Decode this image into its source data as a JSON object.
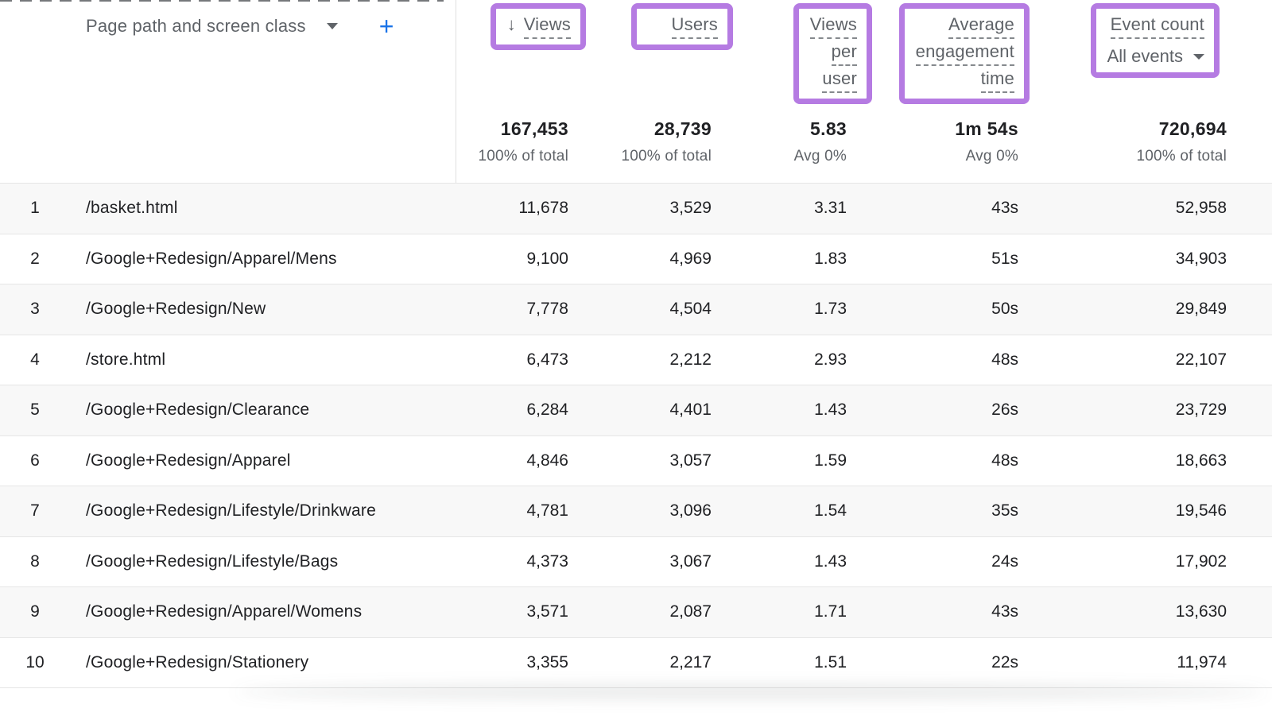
{
  "header": {
    "dimension_label": "Page path and screen class",
    "add_button_label": "+",
    "columns": [
      {
        "id": "views",
        "sort_icon": "↓",
        "label_lines": [
          "Views"
        ],
        "total": "167,453",
        "total_sub": "100% of total"
      },
      {
        "id": "users",
        "label_lines": [
          "Users"
        ],
        "total": "28,739",
        "total_sub": "100% of total"
      },
      {
        "id": "views_per_user",
        "label_lines": [
          "Views",
          "per",
          "user"
        ],
        "total": "5.83",
        "total_sub": "Avg 0%"
      },
      {
        "id": "average_engagement_time",
        "label_lines": [
          "Average",
          "engagement",
          "time"
        ],
        "total": "1m 54s",
        "total_sub": "Avg 0%"
      },
      {
        "id": "event_count",
        "label_lines": [
          "Event count"
        ],
        "event_selector": "All events",
        "total": "720,694",
        "total_sub": "100% of total"
      }
    ]
  },
  "rows": [
    {
      "index": "1",
      "path": "/basket.html",
      "views": "11,678",
      "users": "3,529",
      "views_per_user": "3.31",
      "avg_engagement_time": "43s",
      "event_count": "52,958"
    },
    {
      "index": "2",
      "path": "/Google+Redesign/Apparel/Mens",
      "views": "9,100",
      "users": "4,969",
      "views_per_user": "1.83",
      "avg_engagement_time": "51s",
      "event_count": "34,903"
    },
    {
      "index": "3",
      "path": "/Google+Redesign/New",
      "views": "7,778",
      "users": "4,504",
      "views_per_user": "1.73",
      "avg_engagement_time": "50s",
      "event_count": "29,849"
    },
    {
      "index": "4",
      "path": "/store.html",
      "views": "6,473",
      "users": "2,212",
      "views_per_user": "2.93",
      "avg_engagement_time": "48s",
      "event_count": "22,107"
    },
    {
      "index": "5",
      "path": "/Google+Redesign/Clearance",
      "views": "6,284",
      "users": "4,401",
      "views_per_user": "1.43",
      "avg_engagement_time": "26s",
      "event_count": "23,729"
    },
    {
      "index": "6",
      "path": "/Google+Redesign/Apparel",
      "views": "4,846",
      "users": "3,057",
      "views_per_user": "1.59",
      "avg_engagement_time": "48s",
      "event_count": "18,663"
    },
    {
      "index": "7",
      "path": "/Google+Redesign/Lifestyle/Drinkware",
      "views": "4,781",
      "users": "3,096",
      "views_per_user": "1.54",
      "avg_engagement_time": "35s",
      "event_count": "19,546"
    },
    {
      "index": "8",
      "path": "/Google+Redesign/Lifestyle/Bags",
      "views": "4,373",
      "users": "3,067",
      "views_per_user": "1.43",
      "avg_engagement_time": "24s",
      "event_count": "17,902"
    },
    {
      "index": "9",
      "path": "/Google+Redesign/Apparel/Womens",
      "views": "3,571",
      "users": "2,087",
      "views_per_user": "1.71",
      "avg_engagement_time": "43s",
      "event_count": "13,630"
    },
    {
      "index": "10",
      "path": "/Google+Redesign/Stationery",
      "views": "3,355",
      "users": "2,217",
      "views_per_user": "1.51",
      "avg_engagement_time": "22s",
      "event_count": "11,974"
    }
  ],
  "colors": {
    "highlight_purple": "#b57be2",
    "accent_blue": "#1a73e8",
    "text_primary": "#202124",
    "text_secondary": "#5f6368",
    "row_alt_bg": "#f8f8f8",
    "divider": "#e0e0e0"
  }
}
